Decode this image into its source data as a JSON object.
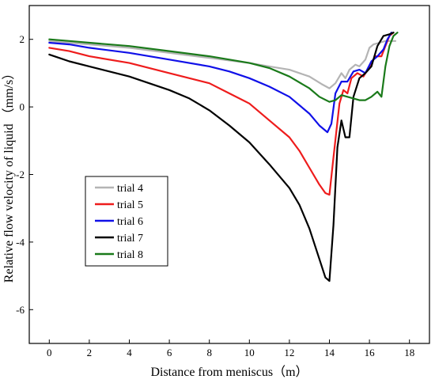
{
  "chart_data": {
    "type": "line",
    "title": "",
    "xlabel": "Distance from meniscus（m）",
    "ylabel": "Relative flow velocity of liquid （mm/s）",
    "xlim": [
      -1,
      19
    ],
    "ylim": [
      -7,
      3
    ],
    "xticks": [
      0,
      2,
      4,
      6,
      8,
      10,
      12,
      14,
      16,
      18
    ],
    "yticks": [
      -6,
      -4,
      -2,
      0,
      2
    ],
    "grid": false,
    "legend": "lower-left",
    "series": [
      {
        "name": "trial 4",
        "color": "#b4b4b4",
        "x": [
          0,
          1,
          2,
          4,
          6,
          8,
          10,
          11,
          12,
          13,
          13.6,
          14,
          14.3,
          14.6,
          14.8,
          15.0,
          15.3,
          15.5,
          15.8,
          16.0,
          16.2,
          16.5,
          16.8,
          17.0,
          17.3
        ],
        "y": [
          1.95,
          1.9,
          1.85,
          1.75,
          1.6,
          1.45,
          1.3,
          1.2,
          1.1,
          0.9,
          0.68,
          0.55,
          0.7,
          1.0,
          0.85,
          1.1,
          1.25,
          1.2,
          1.4,
          1.75,
          1.85,
          1.9,
          1.95,
          1.95,
          1.95
        ]
      },
      {
        "name": "trial 5",
        "color": "#ee1c1c",
        "x": [
          0,
          1,
          2,
          4,
          6,
          8,
          9,
          10,
          11,
          12,
          12.5,
          13,
          13.5,
          13.8,
          14.0,
          14.2,
          14.5,
          14.7,
          14.9,
          15.1,
          15.4,
          15.7,
          16.0,
          16.3,
          16.6,
          16.8,
          17.0,
          17.2
        ],
        "y": [
          1.75,
          1.65,
          1.5,
          1.3,
          1.0,
          0.7,
          0.4,
          0.1,
          -0.4,
          -0.9,
          -1.3,
          -1.8,
          -2.3,
          -2.55,
          -2.6,
          -1.5,
          0.1,
          0.5,
          0.4,
          0.85,
          1.0,
          0.9,
          1.2,
          1.5,
          1.5,
          1.8,
          2.1,
          2.2
        ]
      },
      {
        "name": "trial 6",
        "color": "#1010e8",
        "x": [
          0,
          1,
          2,
          4,
          6,
          8,
          9,
          10,
          11,
          12,
          12.5,
          13,
          13.5,
          13.9,
          14.1,
          14.3,
          14.6,
          14.9,
          15.2,
          15.5,
          15.8,
          16.1,
          16.4,
          16.7,
          16.9,
          17.1
        ],
        "y": [
          1.9,
          1.85,
          1.75,
          1.6,
          1.4,
          1.2,
          1.05,
          0.85,
          0.6,
          0.3,
          0.05,
          -0.2,
          -0.55,
          -0.75,
          -0.5,
          0.4,
          0.75,
          0.75,
          1.05,
          1.1,
          1.0,
          1.35,
          1.5,
          1.7,
          2.0,
          2.2
        ]
      },
      {
        "name": "trial 7",
        "color": "#000000",
        "x": [
          0,
          0.5,
          1,
          2,
          4,
          6,
          7,
          8,
          9,
          10,
          11,
          12,
          12.5,
          13,
          13.5,
          13.8,
          14.0,
          14.2,
          14.4,
          14.6,
          14.8,
          15.0,
          15.2,
          15.5,
          15.8,
          16.1,
          16.4,
          16.7,
          17.0,
          17.2
        ],
        "y": [
          1.55,
          1.45,
          1.35,
          1.2,
          0.9,
          0.5,
          0.25,
          -0.1,
          -0.55,
          -1.05,
          -1.7,
          -2.4,
          -2.9,
          -3.6,
          -4.5,
          -5.05,
          -5.15,
          -3.5,
          -1.2,
          -0.4,
          -0.9,
          -0.9,
          0.3,
          0.85,
          1.0,
          1.2,
          1.8,
          2.1,
          2.15,
          2.2
        ]
      },
      {
        "name": "trial 8",
        "color": "#1a7a1a",
        "x": [
          0,
          1,
          2,
          4,
          6,
          8,
          10,
          11,
          12,
          13,
          13.5,
          14.0,
          14.3,
          14.6,
          14.9,
          15.2,
          15.5,
          15.8,
          16.1,
          16.4,
          16.6,
          16.8,
          17.0,
          17.2,
          17.4
        ],
        "y": [
          2.0,
          1.95,
          1.9,
          1.8,
          1.65,
          1.5,
          1.3,
          1.15,
          0.9,
          0.55,
          0.3,
          0.15,
          0.2,
          0.35,
          0.3,
          0.25,
          0.2,
          0.2,
          0.3,
          0.45,
          0.3,
          1.2,
          1.8,
          2.1,
          2.2
        ]
      }
    ]
  }
}
